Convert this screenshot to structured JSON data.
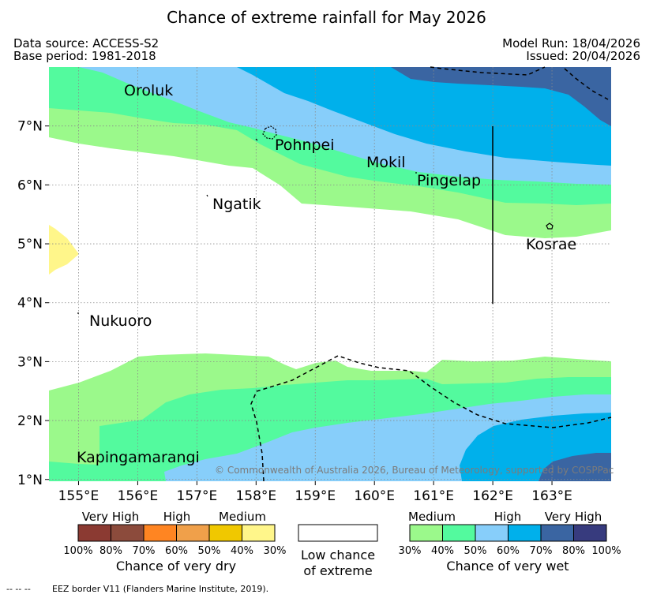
{
  "header": {
    "title": "Chance of extreme rainfall for May 2026",
    "data_source": "Data source: ACCESS-S2",
    "base_period": "Base period: 1981-2018",
    "model_run": "Model Run: 18/04/2026",
    "issued": "Issued: 20/04/2026"
  },
  "chart_data": {
    "type": "heatmap",
    "title": "Chance of extreme rainfall for May 2026",
    "x_axis": {
      "range": [
        154.5,
        164.0
      ],
      "ticks": [
        "155°E",
        "156°E",
        "157°E",
        "158°E",
        "159°E",
        "160°E",
        "161°E",
        "162°E",
        "163°E"
      ],
      "tick_values": [
        155,
        156,
        157,
        158,
        159,
        160,
        161,
        162,
        163
      ]
    },
    "y_axis": {
      "range": [
        0.97,
        8.0
      ],
      "ticks": [
        "1°N",
        "2°N",
        "3°N",
        "4°N",
        "5°N",
        "6°N",
        "7°N"
      ],
      "tick_values": [
        1,
        2,
        3,
        4,
        5,
        6,
        7
      ]
    },
    "grid": true,
    "places": [
      {
        "name": "Oroluk",
        "lon": 155.8,
        "lat": 7.6
      },
      {
        "name": "Pohnpei",
        "lon": 158.2,
        "lat": 6.9
      },
      {
        "name": "Mokil",
        "lon": 159.9,
        "lat": 6.65
      },
      {
        "name": "Pingelap",
        "lon": 160.7,
        "lat": 6.2
      },
      {
        "name": "Ngatik",
        "lon": 157.25,
        "lat": 5.8
      },
      {
        "name": "Kosrae",
        "lon": 162.9,
        "lat": 5.3
      },
      {
        "name": "Nukuoro",
        "lon": 155.0,
        "lat": 3.85
      },
      {
        "name": "Kapingamarangi",
        "lon": 154.8,
        "lat": 1.1
      }
    ],
    "categories": {
      "dry": [
        {
          "label": "100%-80%",
          "color": "#8b3a32"
        },
        {
          "label": "80%-70%",
          "color": "#8c4b3c"
        },
        {
          "label": "70%-60%",
          "color": "#ff8522"
        },
        {
          "label": "60%-50%",
          "color": "#f0a04a"
        },
        {
          "label": "50%-40%",
          "color": "#f0c800"
        },
        {
          "label": "40%-30%",
          "color": "#fff68a"
        }
      ],
      "wet": [
        {
          "label": "30%-40%",
          "color": "#9bf98b"
        },
        {
          "label": "40%-50%",
          "color": "#53fa9e"
        },
        {
          "label": "50%-60%",
          "color": "#87cefa"
        },
        {
          "label": "60%-70%",
          "color": "#00b0eb"
        },
        {
          "label": "70%-80%",
          "color": "#3a65a2"
        },
        {
          "label": "80%-100%",
          "color": "#373b7e"
        }
      ]
    },
    "notes": {
      "copyright": "© Commonwealth of Australia 2026, Bureau of Meteorology, supported by COSPPac"
    }
  },
  "legend": {
    "dry_headers": [
      "Very High",
      "High",
      "Medium"
    ],
    "dry_percents": [
      "100%",
      "80%",
      "70%",
      "60%",
      "50%",
      "40%",
      "30%"
    ],
    "dry_caption": "Chance of very dry",
    "low_caption_line1": "Low chance",
    "low_caption_line2": "of extreme",
    "wet_headers": [
      "Medium",
      "High",
      "Very High"
    ],
    "wet_percents": [
      "30%",
      "40%",
      "50%",
      "60%",
      "70%",
      "80%",
      "100%"
    ],
    "wet_caption": "Chance of very wet"
  },
  "footnote": {
    "line_symbol": "--  --  --",
    "text": "EEZ border V11 (Flanders Marine Institute, 2019)."
  }
}
